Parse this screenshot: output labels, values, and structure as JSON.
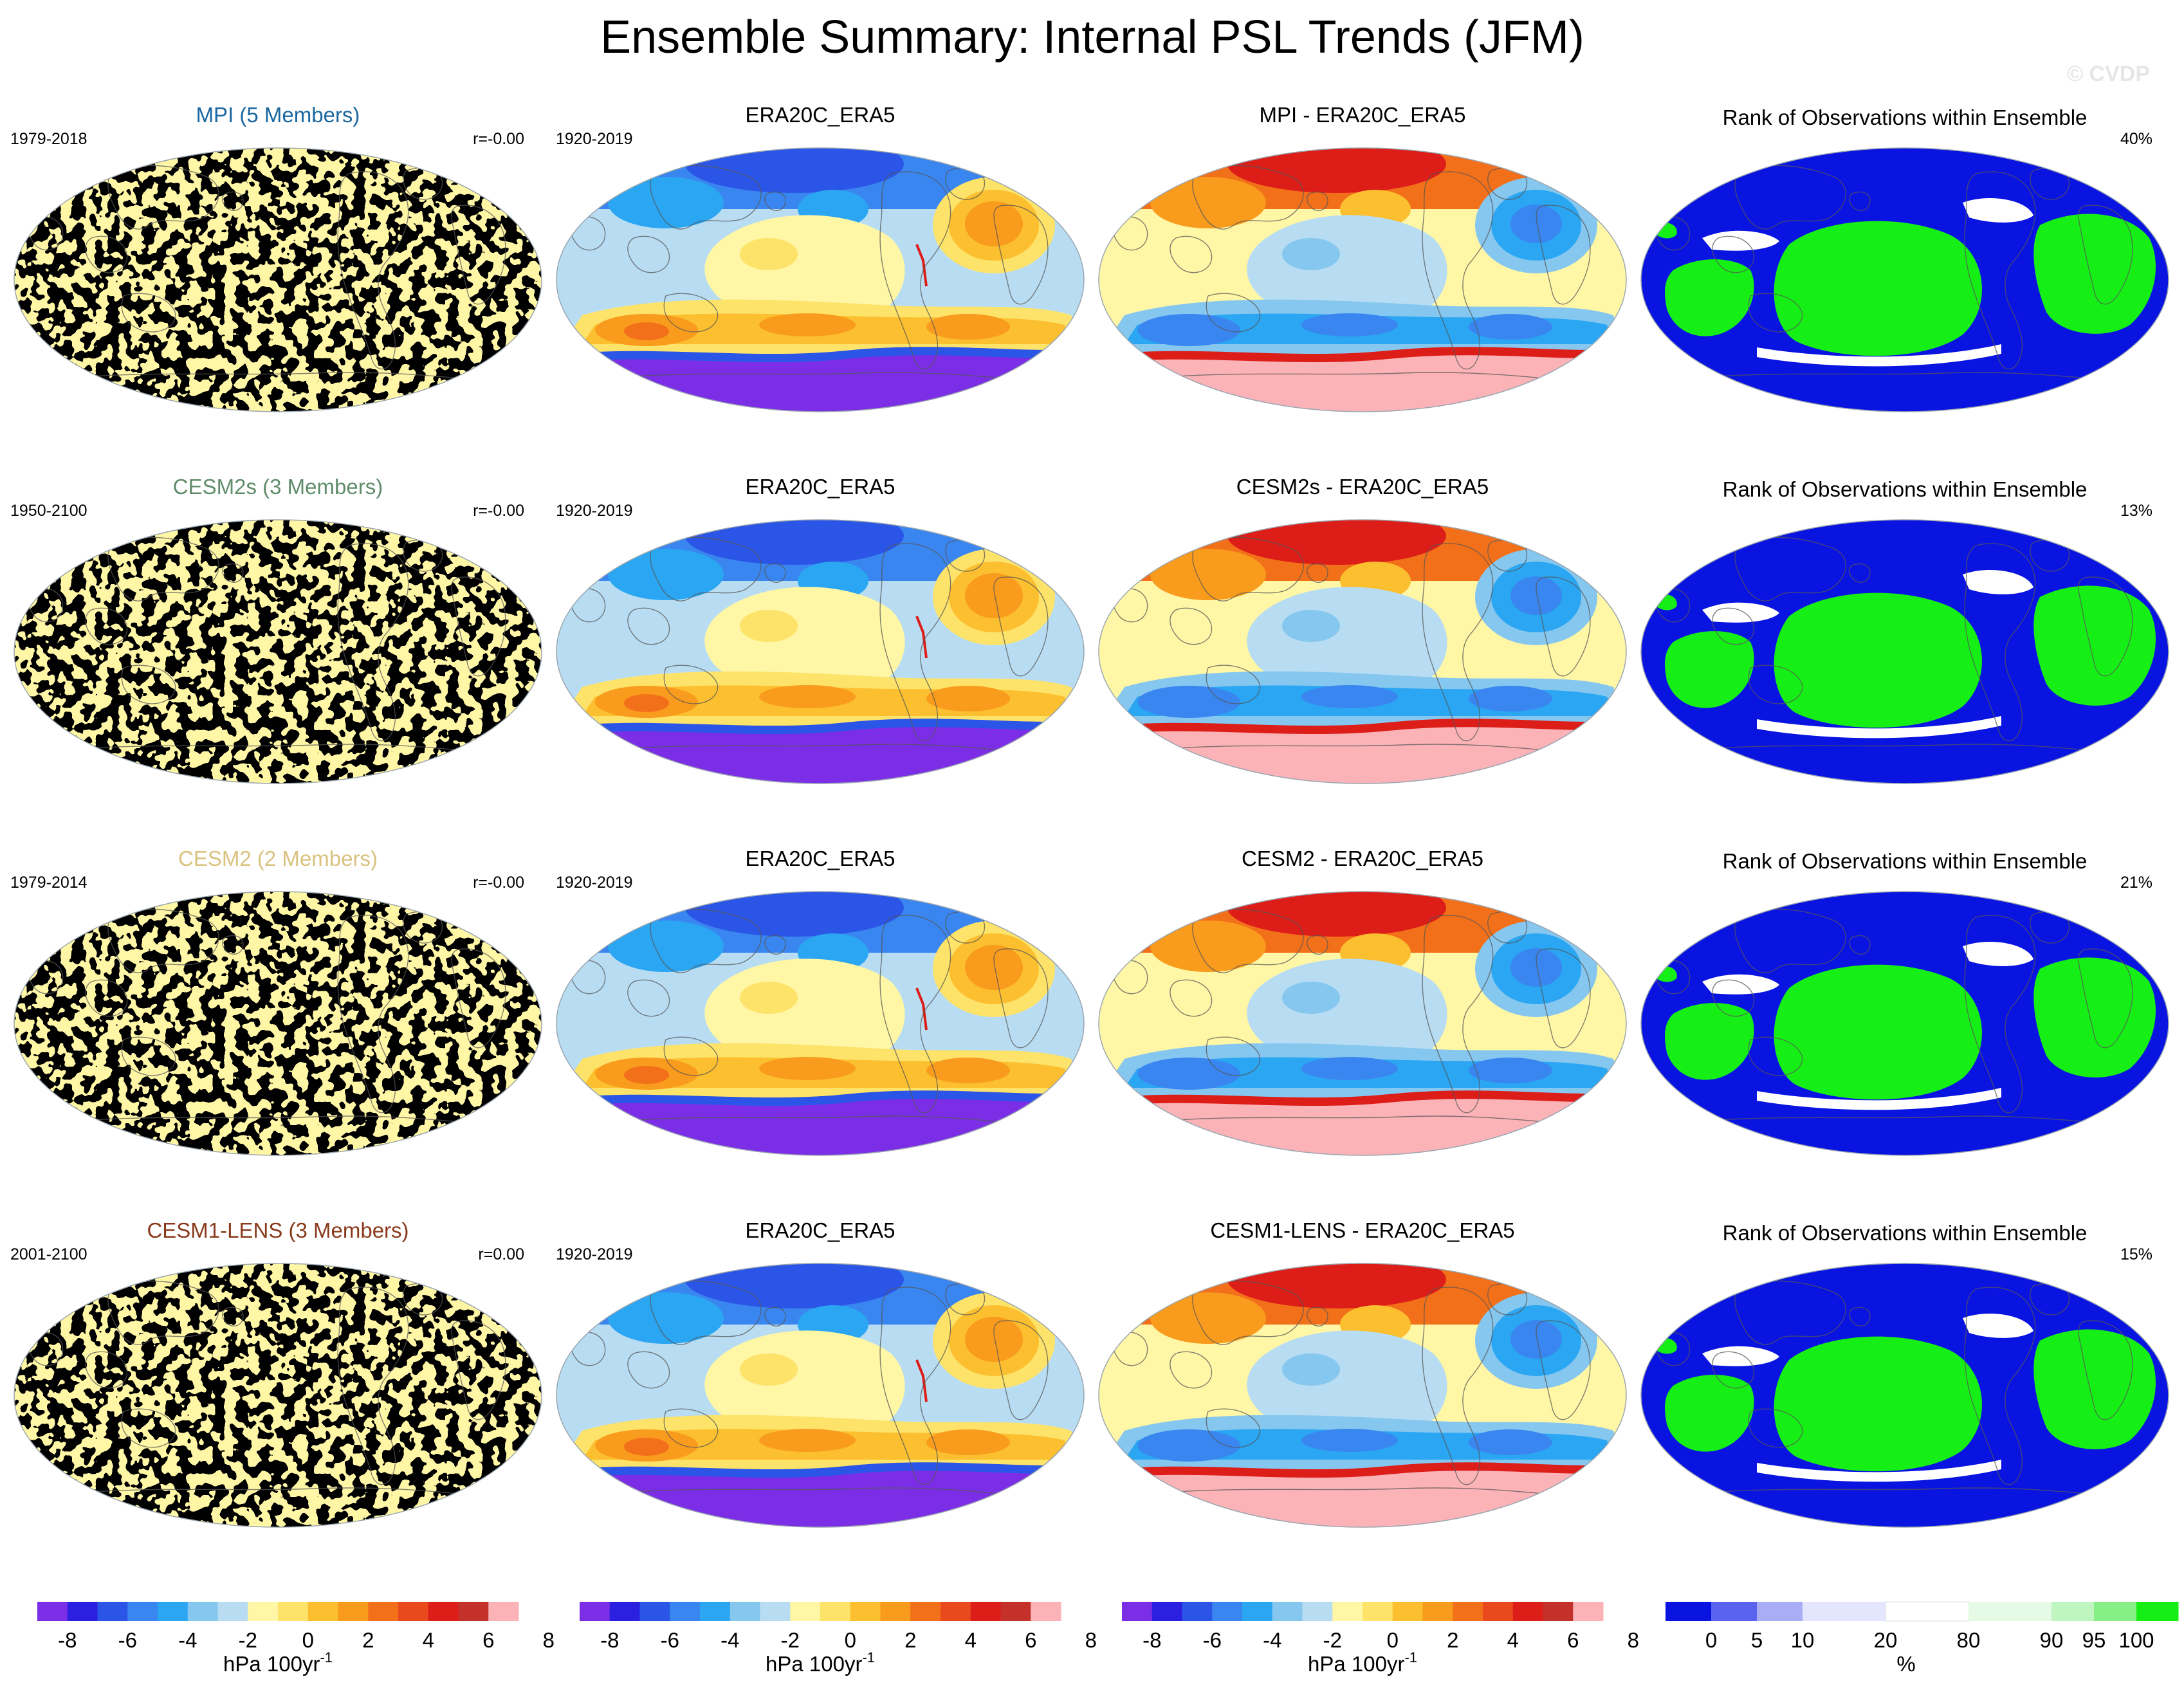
{
  "title": "Ensemble Summary: Internal PSL Trends (JFM)",
  "watermark": "© CVDP",
  "colors": {
    "trend_levels": [
      "#7b2ee6",
      "#2b1fe0",
      "#2b55e6",
      "#3a86f0",
      "#2aa6f2",
      "#86c7ef",
      "#b8ddf2",
      "#fff6a6",
      "#fde36a",
      "#fcbf2f",
      "#f99b1c",
      "#f3701a",
      "#e84a1d",
      "#dd1d18",
      "#c4302a",
      "#fbb3b8"
    ],
    "rank_levels": [
      "#0a14e0",
      "#5a62f0",
      "#a9adf6",
      "#e4e6fd",
      "#ffffff",
      "#e6fbe6",
      "#bff5bf",
      "#86f086",
      "#16ef16"
    ],
    "coastline": "#555555"
  },
  "rows": [
    {
      "model_title": "MPI (5 Members)",
      "model_color": "#1a67a0",
      "model_years": "1979-2018",
      "correlation": "r=-0.00",
      "obs_title": "ERA20C_ERA5",
      "obs_years": "1920-2019",
      "diff_title": "MPI - ERA20C_ERA5",
      "rank_title": "Rank of Observations within Ensemble",
      "rank_percent": "40%"
    },
    {
      "model_title": "CESM2s (3 Members)",
      "model_color": "#5f8c6a",
      "model_years": "1950-2100",
      "correlation": "r=-0.00",
      "obs_title": "ERA20C_ERA5",
      "obs_years": "1920-2019",
      "diff_title": "CESM2s - ERA20C_ERA5",
      "rank_title": "Rank of Observations within Ensemble",
      "rank_percent": "13%"
    },
    {
      "model_title": "CESM2 (2 Members)",
      "model_color": "#d9c27e",
      "model_years": "1979-2014",
      "correlation": "r=-0.00",
      "obs_title": "ERA20C_ERA5",
      "obs_years": "1920-2019",
      "diff_title": "CESM2 - ERA20C_ERA5",
      "rank_title": "Rank of Observations within Ensemble",
      "rank_percent": "21%"
    },
    {
      "model_title": "CESM1-LENS (3 Members)",
      "model_color": "#8a3a1c",
      "model_years": "2001-2100",
      "correlation": "r=0.00",
      "obs_title": "ERA20C_ERA5",
      "obs_years": "1920-2019",
      "diff_title": "CESM1-LENS - ERA20C_ERA5",
      "rank_title": "Rank of Observations within Ensemble",
      "rank_percent": "15%"
    }
  ],
  "colorbars": [
    {
      "ticks": [
        "-8",
        "-6",
        "-4",
        "-2",
        "0",
        "2",
        "4",
        "6",
        "8"
      ],
      "unit": "hPa 100yr",
      "unit_exp": "-1"
    },
    {
      "ticks": [
        "-8",
        "-6",
        "-4",
        "-2",
        "0",
        "2",
        "4",
        "6",
        "8"
      ],
      "unit": "hPa 100yr",
      "unit_exp": "-1"
    },
    {
      "ticks": [
        "-8",
        "-6",
        "-4",
        "-2",
        "0",
        "2",
        "4",
        "6",
        "8"
      ],
      "unit": "hPa 100yr",
      "unit_exp": "-1"
    },
    {
      "ticks": [
        "0",
        "5",
        "10",
        "20",
        "80",
        "90",
        "95",
        "100"
      ],
      "unit": "%",
      "unit_exp": ""
    }
  ]
}
